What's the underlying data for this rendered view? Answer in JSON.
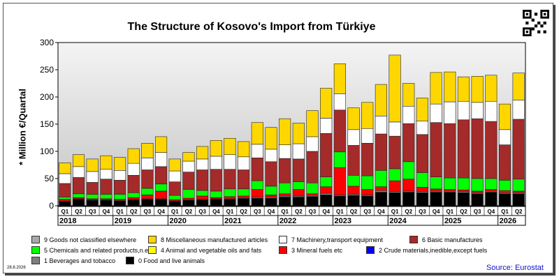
{
  "chart_data": {
    "type": "bar",
    "stacked": true,
    "title": "The Structure of Kosovo's Import from Türkiye",
    "ylabel": "* Million €/Quartal",
    "ylim": [
      0,
      300
    ],
    "yticks": [
      0,
      50,
      100,
      150,
      200,
      250,
      300
    ],
    "grid": false,
    "legend_position": "bottom",
    "quarter_labels": [
      "Q1",
      "Q2",
      "Q3",
      "Q4"
    ],
    "years": [
      "2018",
      "2019",
      "2020",
      "2021",
      "2022",
      "2023",
      "2024",
      "2025",
      "2026"
    ],
    "categories": [
      "2018 Q1",
      "2018 Q2",
      "2018 Q3",
      "2018 Q4",
      "2019 Q1",
      "2019 Q2",
      "2019 Q3",
      "2019 Q4",
      "2020 Q1",
      "2020 Q2",
      "2020 Q3",
      "2020 Q4",
      "2021 Q1",
      "2021 Q2",
      "2021 Q3",
      "2021 Q4",
      "2022 Q1",
      "2022 Q2",
      "2022 Q3",
      "2022 Q4",
      "2023 Q1",
      "2023 Q2",
      "2023 Q3",
      "2023 Q4",
      "2024 Q1",
      "2024 Q2",
      "2024 Q3",
      "2024 Q4",
      "2025 Q1",
      "2025 Q2",
      "2025 Q3",
      "2025 Q4",
      "2026 Q1",
      "2026 Q2"
    ],
    "series": [
      {
        "name": "0 Food and live animals",
        "color": "#000000",
        "values": [
          8,
          12,
          10,
          10,
          9,
          11,
          12,
          12,
          8,
          10,
          11,
          12,
          12,
          13,
          14,
          14,
          16,
          16,
          17,
          20,
          18,
          19,
          18,
          25,
          24,
          25,
          24,
          25,
          25,
          24,
          22,
          25,
          22,
          22
        ]
      },
      {
        "name": "1 Beverages and tobacco",
        "color": "#7f7f7f",
        "values": [
          1,
          1,
          1,
          1,
          1,
          1,
          1,
          1,
          1,
          1,
          1,
          1,
          1,
          1,
          2,
          2,
          2,
          2,
          2,
          3,
          2,
          2,
          2,
          3,
          2,
          2,
          2,
          2,
          2,
          2,
          2,
          2,
          2,
          2
        ]
      },
      {
        "name": "9 Goods not classified elsewhere",
        "color": "#a8a8a8",
        "values": [
          0,
          0,
          0,
          0,
          0,
          0,
          0,
          0,
          0,
          0,
          0,
          0,
          0,
          0,
          0,
          0,
          0,
          0,
          0,
          0,
          0,
          0,
          0,
          0,
          0,
          0,
          0,
          0,
          0,
          0,
          0,
          0,
          0,
          0
        ]
      },
      {
        "name": "2 Crude materials,inedible,except fuels",
        "color": "#0000ff",
        "values": [
          0,
          0,
          0,
          0,
          0,
          0,
          0,
          0,
          0,
          0,
          0,
          0,
          0,
          0,
          0,
          0,
          0,
          0,
          0,
          0,
          0,
          0,
          0,
          0,
          0,
          0,
          0,
          0,
          0,
          0,
          0,
          0,
          0,
          0
        ]
      },
      {
        "name": "3 Mineral fuels etc",
        "color": "#ff0000",
        "values": [
          3,
          2,
          2,
          2,
          2,
          3,
          7,
          14,
          2,
          3,
          6,
          2,
          4,
          4,
          14,
          4,
          4,
          12,
          3,
          12,
          50,
          15,
          10,
          7,
          20,
          22,
          8,
          4,
          3,
          3,
          3,
          3,
          4,
          3
        ]
      },
      {
        "name": "5 Chemicals and related products,n.e.s.",
        "color": "#00ff00",
        "values": [
          4,
          7,
          8,
          8,
          9,
          9,
          12,
          13,
          8,
          16,
          10,
          12,
          14,
          13,
          16,
          16,
          20,
          14,
          20,
          18,
          29,
          20,
          25,
          30,
          22,
          32,
          27,
          22,
          21,
          22,
          23,
          20,
          19,
          22
        ]
      },
      {
        "name": "6 Basic manufactures",
        "color": "#a52a2a",
        "values": [
          25,
          30,
          22,
          28,
          26,
          32,
          34,
          32,
          25,
          32,
          38,
          40,
          36,
          35,
          42,
          45,
          45,
          42,
          58,
          80,
          77,
          55,
          60,
          67,
          60,
          70,
          70,
          100,
          100,
          107,
          110,
          105,
          65,
          110
        ]
      },
      {
        "name": "7 Machinery,transport equipment",
        "color": "#ffffff",
        "values": [
          18,
          20,
          20,
          18,
          18,
          22,
          22,
          26,
          20,
          20,
          20,
          24,
          27,
          24,
          25,
          23,
          25,
          28,
          27,
          28,
          30,
          29,
          27,
          33,
          26,
          32,
          25,
          34,
          40,
          34,
          30,
          37,
          28,
          35
        ]
      },
      {
        "name": "4 Animal and vegetable oils and fats",
        "color": "#ffff00",
        "values": [
          0,
          0,
          0,
          0,
          0,
          0,
          0,
          0,
          0,
          0,
          0,
          0,
          0,
          0,
          0,
          0,
          0,
          0,
          0,
          0,
          0,
          0,
          0,
          0,
          0,
          0,
          0,
          0,
          0,
          0,
          0,
          0,
          0,
          0
        ]
      },
      {
        "name": "8 Miscellaneous manufactured articles",
        "color": "#ffd700",
        "values": [
          20,
          22,
          23,
          25,
          24,
          27,
          27,
          29,
          22,
          16,
          23,
          29,
          30,
          28,
          40,
          40,
          48,
          38,
          48,
          55,
          55,
          40,
          48,
          58,
          123,
          42,
          42,
          58,
          55,
          45,
          48,
          48,
          47,
          50
        ]
      }
    ]
  },
  "legend": [
    {
      "label": "9 Goods not classified elsewhere",
      "color": "#a8a8a8"
    },
    {
      "label": "8 Miscellaneous manufactured articles",
      "color": "#ffd700"
    },
    {
      "label": "7 Machinery,transport equipment",
      "color": "#ffffff"
    },
    {
      "label": "6 Basic manufactures",
      "color": "#a52a2a"
    },
    {
      "label": "5 Chemicals and related products,n.e.s.",
      "color": "#00ff00"
    },
    {
      "label": "4 Animal and vegetable oils and fats",
      "color": "#ffff00"
    },
    {
      "label": "3 Mineral fuels etc",
      "color": "#ff0000"
    },
    {
      "label": "2 Crude materials,inedible,except fuels",
      "color": "#0000ff"
    },
    {
      "label": "1 Beverages and tobacco",
      "color": "#7f7f7f"
    },
    {
      "label": "0 Food and live animals",
      "color": "#000000"
    }
  ],
  "date": "28.8.2026",
  "source": "Source: Eurostat",
  "qr_icon": "qr-code-icon"
}
